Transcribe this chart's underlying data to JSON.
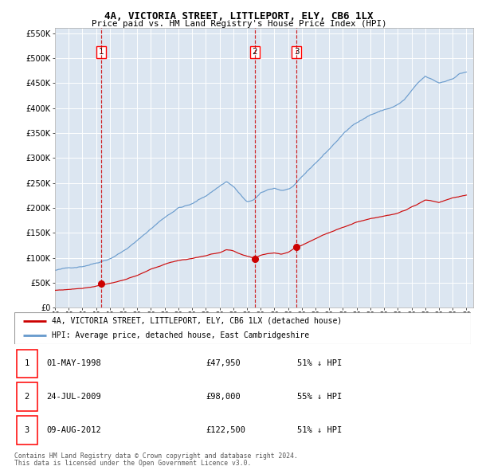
{
  "title": "4A, VICTORIA STREET, LITTLEPORT, ELY, CB6 1LX",
  "subtitle": "Price paid vs. HM Land Registry's House Price Index (HPI)",
  "legend_line1": "4A, VICTORIA STREET, LITTLEPORT, ELY, CB6 1LX (detached house)",
  "legend_line2": "HPI: Average price, detached house, East Cambridgeshire",
  "footer1": "Contains HM Land Registry data © Crown copyright and database right 2024.",
  "footer2": "This data is licensed under the Open Government Licence v3.0.",
  "table": [
    {
      "num": "1",
      "date": "01-MAY-1998",
      "price": "£47,950",
      "note": "51% ↓ HPI"
    },
    {
      "num": "2",
      "date": "24-JUL-2009",
      "price": "£98,000",
      "note": "55% ↓ HPI"
    },
    {
      "num": "3",
      "date": "09-AUG-2012",
      "price": "£122,500",
      "note": "51% ↓ HPI"
    }
  ],
  "sale_dates_year": [
    1998.37,
    2009.56,
    2012.61
  ],
  "sale_prices": [
    47950,
    98000,
    122500
  ],
  "hpi_color": "#6699cc",
  "price_color": "#cc0000",
  "bg_color": "#dce6f1",
  "grid_color": "#ffffff",
  "ylim": [
    0,
    560000
  ],
  "xlim_start": 1995.0,
  "xlim_end": 2025.5,
  "hpi_anchors": [
    [
      1995.0,
      75000
    ],
    [
      1996.0,
      79000
    ],
    [
      1997.0,
      84000
    ],
    [
      1997.5,
      88000
    ],
    [
      1998.0,
      92000
    ],
    [
      1999.0,
      102000
    ],
    [
      2000.0,
      118000
    ],
    [
      2001.0,
      138000
    ],
    [
      2002.0,
      162000
    ],
    [
      2003.0,
      185000
    ],
    [
      2004.0,
      205000
    ],
    [
      2005.0,
      212000
    ],
    [
      2006.0,
      228000
    ],
    [
      2007.0,
      248000
    ],
    [
      2007.5,
      258000
    ],
    [
      2008.0,
      248000
    ],
    [
      2008.5,
      232000
    ],
    [
      2009.0,
      215000
    ],
    [
      2009.5,
      220000
    ],
    [
      2010.0,
      232000
    ],
    [
      2010.5,
      238000
    ],
    [
      2011.0,
      242000
    ],
    [
      2011.5,
      238000
    ],
    [
      2012.0,
      240000
    ],
    [
      2012.5,
      248000
    ],
    [
      2013.0,
      262000
    ],
    [
      2014.0,
      290000
    ],
    [
      2015.0,
      318000
    ],
    [
      2016.0,
      348000
    ],
    [
      2017.0,
      372000
    ],
    [
      2018.0,
      388000
    ],
    [
      2019.0,
      398000
    ],
    [
      2019.5,
      402000
    ],
    [
      2020.0,
      408000
    ],
    [
      2020.5,
      418000
    ],
    [
      2021.0,
      435000
    ],
    [
      2021.5,
      450000
    ],
    [
      2022.0,
      462000
    ],
    [
      2022.5,
      455000
    ],
    [
      2023.0,
      448000
    ],
    [
      2023.5,
      452000
    ],
    [
      2024.0,
      458000
    ],
    [
      2024.5,
      468000
    ],
    [
      2025.0,
      472000
    ]
  ],
  "price_anchors": [
    [
      1995.0,
      35000
    ],
    [
      1996.0,
      37000
    ],
    [
      1997.0,
      40000
    ],
    [
      1998.0,
      45000
    ],
    [
      1998.37,
      47950
    ],
    [
      1999.0,
      51000
    ],
    [
      2000.0,
      58000
    ],
    [
      2001.0,
      66000
    ],
    [
      2002.0,
      78000
    ],
    [
      2003.0,
      88000
    ],
    [
      2004.0,
      96000
    ],
    [
      2005.0,
      100000
    ],
    [
      2006.0,
      106000
    ],
    [
      2007.0,
      112000
    ],
    [
      2007.5,
      118000
    ],
    [
      2008.0,
      115000
    ],
    [
      2008.5,
      108000
    ],
    [
      2009.0,
      103000
    ],
    [
      2009.56,
      98000
    ],
    [
      2010.0,
      105000
    ],
    [
      2010.5,
      108000
    ],
    [
      2011.0,
      110000
    ],
    [
      2011.5,
      108000
    ],
    [
      2012.0,
      112000
    ],
    [
      2012.61,
      122500
    ],
    [
      2013.0,
      126000
    ],
    [
      2014.0,
      140000
    ],
    [
      2015.0,
      152000
    ],
    [
      2016.0,
      164000
    ],
    [
      2017.0,
      174000
    ],
    [
      2018.0,
      182000
    ],
    [
      2019.0,
      188000
    ],
    [
      2019.5,
      190000
    ],
    [
      2020.0,
      193000
    ],
    [
      2020.5,
      198000
    ],
    [
      2021.0,
      205000
    ],
    [
      2021.5,
      212000
    ],
    [
      2022.0,
      220000
    ],
    [
      2022.5,
      218000
    ],
    [
      2023.0,
      215000
    ],
    [
      2023.5,
      220000
    ],
    [
      2024.0,
      225000
    ],
    [
      2024.5,
      228000
    ],
    [
      2025.0,
      230000
    ]
  ]
}
